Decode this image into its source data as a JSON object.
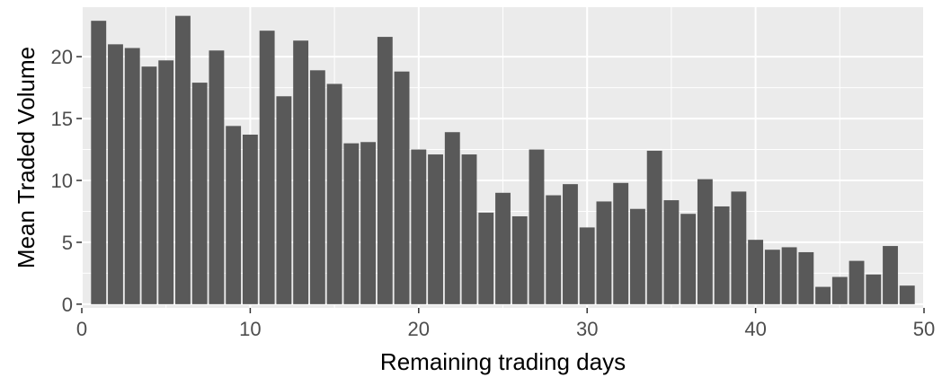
{
  "chart_data": {
    "type": "bar",
    "title": "",
    "xlabel": "Remaining trading days",
    "ylabel": "Mean Traded Volume",
    "xlim": [
      0,
      50
    ],
    "ylim": [
      -0.3,
      24
    ],
    "x_ticks": [
      0,
      10,
      20,
      30,
      40,
      50
    ],
    "y_ticks": [
      0,
      5,
      10,
      15,
      20
    ],
    "grid": true,
    "legend": "none",
    "x": [
      1,
      2,
      3,
      4,
      5,
      6,
      7,
      8,
      9,
      10,
      11,
      12,
      13,
      14,
      15,
      16,
      17,
      18,
      19,
      20,
      21,
      22,
      23,
      24,
      25,
      26,
      27,
      28,
      29,
      30,
      31,
      32,
      33,
      34,
      35,
      36,
      37,
      38,
      39,
      40,
      41,
      42,
      43,
      44,
      45,
      46,
      47,
      48,
      49
    ],
    "values": [
      22.9,
      21.0,
      20.7,
      19.2,
      19.7,
      23.3,
      17.9,
      20.5,
      14.4,
      13.7,
      22.1,
      16.8,
      21.3,
      18.9,
      17.8,
      13.0,
      13.1,
      21.6,
      18.8,
      12.5,
      12.1,
      13.9,
      12.1,
      7.4,
      9.0,
      7.1,
      12.5,
      8.8,
      9.7,
      6.2,
      8.3,
      9.8,
      7.7,
      12.4,
      8.4,
      7.3,
      10.1,
      7.9,
      9.1,
      5.2,
      4.4,
      4.6,
      4.2,
      1.4,
      2.2,
      3.5,
      2.4,
      4.7,
      1.5
    ],
    "bar_color": "#595959",
    "panel_color": "#ebebeb",
    "grid_color": "#ffffff"
  }
}
